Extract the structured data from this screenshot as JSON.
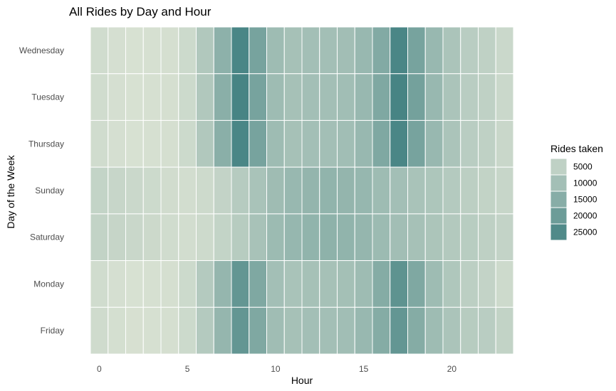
{
  "chart_data": {
    "type": "heatmap",
    "title": "All Rides by Day and Hour",
    "xlabel": "Hour",
    "ylabel": "Day of the Week",
    "x": [
      0,
      1,
      2,
      3,
      4,
      5,
      6,
      7,
      8,
      9,
      10,
      11,
      12,
      13,
      14,
      15,
      16,
      17,
      18,
      19,
      20,
      21,
      22,
      23
    ],
    "x_ticks": [
      0,
      5,
      10,
      15,
      20
    ],
    "xlim": [
      -0.5,
      23.5
    ],
    "days": [
      "Wednesday",
      "Tuesday",
      "Thursday",
      "Sunday",
      "Saturday",
      "Monday",
      "Friday"
    ],
    "values": [
      [
        2000,
        1000,
        600,
        800,
        1100,
        2600,
        7500,
        14000,
        26000,
        18000,
        11000,
        9500,
        10000,
        10000,
        10200,
        12000,
        16000,
        26000,
        18000,
        12000,
        8500,
        6000,
        5000,
        3000
      ],
      [
        2000,
        1000,
        600,
        800,
        1100,
        2600,
        7500,
        14500,
        26500,
        18000,
        11000,
        9500,
        10000,
        10000,
        10300,
        12000,
        16500,
        26500,
        18500,
        12000,
        8500,
        6000,
        5000,
        3000
      ],
      [
        2000,
        1000,
        600,
        800,
        1100,
        2600,
        7500,
        14500,
        26000,
        18000,
        11000,
        9500,
        10000,
        10000,
        10300,
        12000,
        16500,
        26000,
        18000,
        12000,
        8500,
        6000,
        5000,
        3200
      ],
      [
        4200,
        3500,
        3000,
        2600,
        1800,
        1500,
        2400,
        4300,
        6600,
        9000,
        10800,
        12000,
        12800,
        13200,
        12800,
        12400,
        11000,
        10000,
        9000,
        8200,
        7000,
        5500,
        4500,
        3500
      ],
      [
        4500,
        3800,
        3200,
        2700,
        1900,
        1600,
        2400,
        4200,
        6500,
        9200,
        11200,
        12400,
        13200,
        13800,
        13200,
        12600,
        11200,
        10200,
        9400,
        8400,
        7200,
        6200,
        5200,
        4300
      ],
      [
        2000,
        1000,
        600,
        800,
        1100,
        2600,
        7000,
        12500,
        21500,
        16500,
        10000,
        9000,
        9500,
        9500,
        9800,
        11000,
        15500,
        22500,
        16500,
        11000,
        7800,
        5500,
        4300,
        2500
      ],
      [
        2200,
        1200,
        700,
        800,
        1100,
        2600,
        7000,
        12500,
        21500,
        16500,
        10500,
        9500,
        10000,
        10000,
        10300,
        12000,
        15500,
        21500,
        15500,
        11000,
        8500,
        6500,
        6000,
        4500
      ]
    ],
    "color_scale": {
      "low": "#d8e1d2",
      "high": "#3f7f80",
      "min": 500,
      "max": 28000
    },
    "legend": {
      "title": "Rides taken",
      "breaks": [
        5000,
        10000,
        15000,
        20000,
        25000
      ],
      "labels": [
        "5000",
        "10000",
        "15000",
        "20000",
        "25000"
      ],
      "position": "right"
    },
    "grid": false
  }
}
